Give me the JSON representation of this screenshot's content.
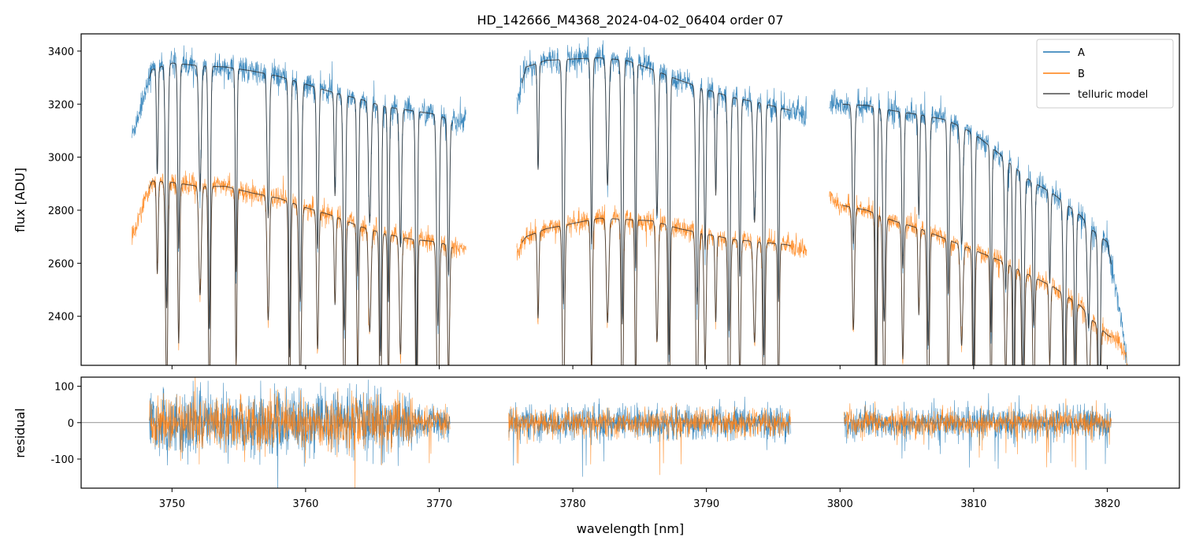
{
  "chart_data": [
    {
      "type": "line",
      "title": "HD_142666_M4368_2024-04-02_06404  order 07",
      "xlabel": "",
      "ylabel": "flux [ADU]",
      "xlim": [
        3743.2,
        3825.4
      ],
      "ylim": [
        2215,
        3465
      ],
      "yticks": [
        2400,
        2600,
        2800,
        3000,
        3200,
        3400
      ],
      "xticks": [
        3750,
        3760,
        3770,
        3780,
        3790,
        3800,
        3810,
        3820
      ],
      "show_xtick_labels": false,
      "legend_position": "upper right",
      "colors": {
        "A": "#1f77b4",
        "B": "#ff7f0e",
        "telluric model": "#4d4d4d"
      },
      "series": [
        {
          "name": "A",
          "segments": [
            [
              3747.0,
              3772.0
            ],
            [
              3775.8,
              3797.5
            ],
            [
              3799.2,
              3821.5
            ]
          ],
          "continuum": {
            "x": [
              3747.0,
              3748.5,
              3750,
              3752,
              3754,
              3756,
              3758,
              3760,
              3762,
              3764,
              3766,
              3768,
              3770,
              3771,
              3772,
              3775.8,
              3776.5,
              3778,
              3780,
              3782,
              3784,
              3786,
              3788,
              3790,
              3792,
              3794,
              3796,
              3797.5,
              3799.2,
              3800,
              3802,
              3804,
              3806,
              3808,
              3810,
              3812,
              3814,
              3816,
              3818,
              3819,
              3820,
              3821,
              3821.5
            ],
            "y": [
              3080,
              3330,
              3355,
              3345,
              3340,
              3325,
              3305,
              3275,
              3245,
              3220,
              3190,
              3175,
              3160,
              3130,
              3150,
              3200,
              3340,
              3365,
              3370,
              3375,
              3365,
              3330,
              3290,
              3255,
              3225,
              3205,
              3180,
              3160,
              3210,
              3200,
              3195,
              3175,
              3160,
              3140,
              3090,
              3010,
              2920,
              2860,
              2780,
              2720,
              2680,
              2400,
              2220
            ]
          },
          "noise_amplitude": 45
        },
        {
          "name": "B",
          "segments": [
            [
              3747.0,
              3772.0
            ],
            [
              3775.8,
              3797.5
            ],
            [
              3799.2,
              3821.5
            ]
          ],
          "continuum": {
            "x": [
              3747.0,
              3748.5,
              3750,
              3752,
              3754,
              3756,
              3758,
              3760,
              3762,
              3764,
              3766,
              3768,
              3770,
              3771,
              3772,
              3775.8,
              3776.5,
              3778,
              3780,
              3782,
              3784,
              3786,
              3788,
              3790,
              3792,
              3794,
              3796,
              3797.5,
              3799.2,
              3800,
              3802,
              3804,
              3806,
              3808,
              3810,
              3812,
              3814,
              3816,
              3818,
              3819,
              3820,
              3821,
              3821.5
            ],
            "y": [
              2700,
              2910,
              2905,
              2890,
              2890,
              2865,
              2845,
              2810,
              2780,
              2740,
              2710,
              2690,
              2680,
              2660,
              2650,
              2650,
              2700,
              2730,
              2750,
              2770,
              2765,
              2760,
              2730,
              2710,
              2690,
              2680,
              2670,
              2650,
              2860,
              2820,
              2800,
              2760,
              2730,
              2690,
              2650,
              2610,
              2560,
              2510,
              2440,
              2380,
              2330,
              2300,
              2230
            ]
          },
          "noise_amplitude": 35
        },
        {
          "name": "telluric model",
          "segments": [
            [
              3748.3,
              3771.0
            ],
            [
              3776.2,
              3796.3
            ],
            [
              3800.2,
              3820.3
            ]
          ],
          "absorption_lines_nm": [
            3748.9,
            3749.6,
            3750.5,
            3752.1,
            3752.8,
            3754.8,
            3757.2,
            3758.8,
            3759.6,
            3760.9,
            3762.2,
            3762.9,
            3763.9,
            3764.8,
            3765.6,
            3766.2,
            3767.1,
            3768.3,
            3769.9,
            3770.7,
            3777.4,
            3779.3,
            3781.4,
            3782.6,
            3783.7,
            3784.7,
            3786.3,
            3787.2,
            3789.3,
            3789.9,
            3790.7,
            3791.7,
            3792.5,
            3793.6,
            3794.3,
            3795.4,
            3801.0,
            3802.7,
            3803.3,
            3804.7,
            3805.9,
            3806.6,
            3808.1,
            3809.1,
            3810.0,
            3811.3,
            3812.4,
            3813.0,
            3813.7,
            3814.5,
            3815.7,
            3816.8,
            3817.6,
            3818.6,
            3819.4
          ]
        }
      ]
    },
    {
      "type": "line",
      "title": "",
      "xlabel": "wavelength [nm]",
      "ylabel": "residual",
      "xlim": [
        3743.2,
        3825.4
      ],
      "ylim": [
        -180,
        125
      ],
      "yticks": [
        -100,
        0,
        100
      ],
      "xticks": [
        3750,
        3760,
        3770,
        3780,
        3790,
        3800,
        3810,
        3820
      ],
      "zero_line": true,
      "series": [
        {
          "name": "A",
          "segments": [
            [
              3748.3,
              3770.8
            ],
            [
              3775.2,
              3796.3
            ],
            [
              3800.3,
              3820.3
            ]
          ],
          "noise_amplitude": 55
        },
        {
          "name": "B",
          "segments": [
            [
              3748.3,
              3770.8
            ],
            [
              3775.2,
              3796.3
            ],
            [
              3800.3,
              3820.3
            ]
          ],
          "noise_amplitude": 45
        }
      ]
    }
  ],
  "legend": {
    "entries": [
      {
        "label": "A",
        "color": "#1f77b4"
      },
      {
        "label": "B",
        "color": "#ff7f0e"
      },
      {
        "label": "telluric model",
        "color": "#4d4d4d"
      }
    ]
  }
}
